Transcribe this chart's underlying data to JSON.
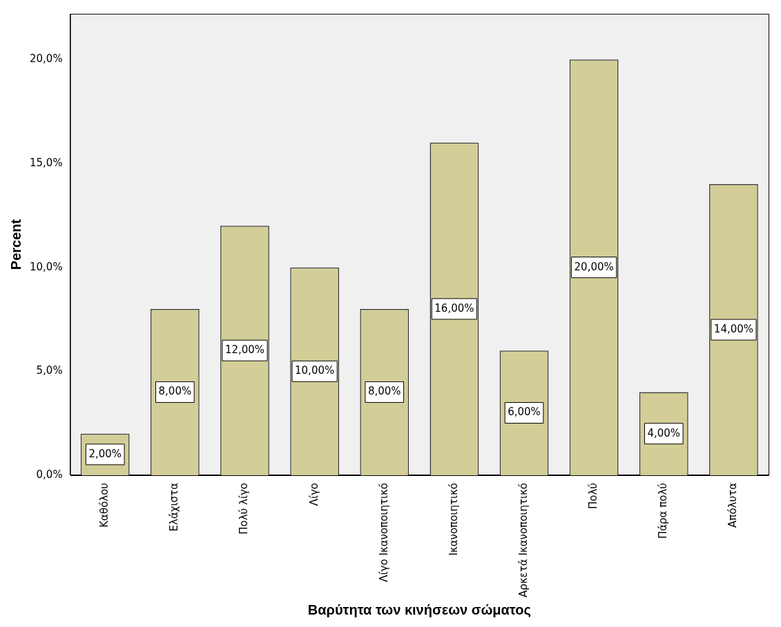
{
  "chart_data": {
    "type": "bar",
    "xlabel": "Βαρύτητα των κινήσεων σώματος",
    "ylabel": "Percent",
    "categories": [
      "Καθόλου",
      "Ελάχιστα",
      "Πολύ λίγο",
      "Λίγο",
      "Λίγο Ικανοποιητικό",
      "Ικανοποιητικό",
      "Αρκετά Ικανοποιητικό",
      "Πολύ",
      "Πάρα πολύ",
      "Απόλυτα"
    ],
    "values": [
      2,
      8,
      12,
      10,
      8,
      16,
      6,
      20,
      4,
      14
    ],
    "value_labels": [
      "2,00%",
      "8,00%",
      "12,00%",
      "10,00%",
      "8,00%",
      "16,00%",
      "6,00%",
      "20,00%",
      "4,00%",
      "14,00%"
    ],
    "color": "#d3ce97",
    "ylim": [
      0,
      22.2
    ],
    "yticks": [
      {
        "value": 0,
        "label": "0,0%"
      },
      {
        "value": 5,
        "label": "5,0%"
      },
      {
        "value": 10,
        "label": "10,0%"
      },
      {
        "value": 15,
        "label": "15,0%"
      },
      {
        "value": 20,
        "label": "20,0%"
      }
    ],
    "grid": false,
    "legend": false
  }
}
